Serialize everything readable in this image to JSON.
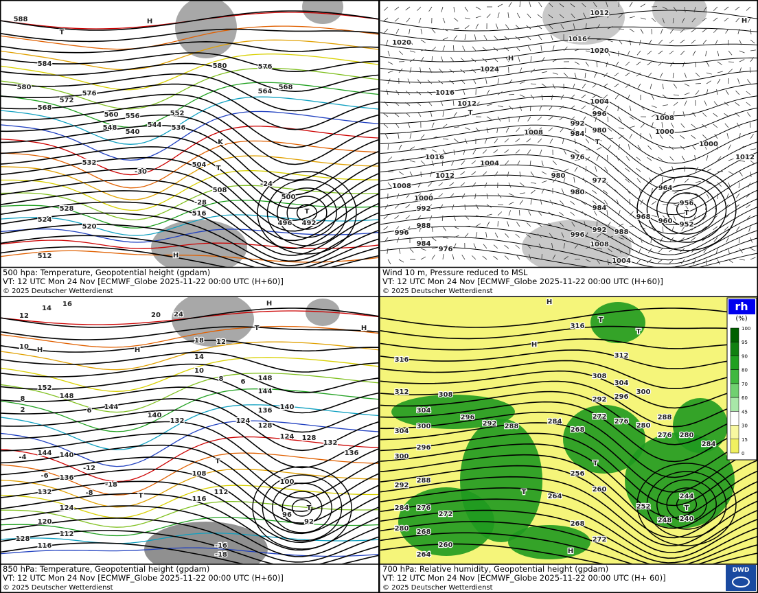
{
  "panels": [
    {
      "caption": [
        "500 hpa: Temperature, Geopotential height (gpdam)",
        "VT: 12 UTC Mon  24 Nov [ECMWF_Globe 2025-11-22 00:00 UTC (H+60)]",
        "© 2025 Deutscher Wetterdienst"
      ],
      "labels": [
        "588",
        "584",
        "580",
        "576",
        "572",
        "568",
        "560",
        "556",
        "552",
        "548",
        "544",
        "540",
        "536",
        "532",
        "528",
        "524",
        "520",
        "516",
        "512",
        "508",
        "504",
        "500",
        "496",
        "492",
        "-30",
        "-24",
        "-28",
        "T",
        "H",
        "T",
        "T",
        "H",
        "K",
        "576",
        "580",
        "564",
        "568"
      ]
    },
    {
      "caption": [
        "Wind 10 m, Pressure reduced to MSL",
        "VT: 12 UTC Mon  24 Nov [ECMWF_Globe 2025-11-22 00:00 UTC (H+60)]",
        "© 2025 Deutscher Wetterdienst"
      ],
      "labels": [
        "1020",
        "1024",
        "1016",
        "1012",
        "1008",
        "1004",
        "1016",
        "1012",
        "1008",
        "1000",
        "992",
        "988",
        "984",
        "976",
        "996",
        "1012",
        "1016",
        "1020",
        "1004",
        "996",
        "992",
        "980",
        "984",
        "976",
        "972",
        "980",
        "980",
        "984",
        "964",
        "956",
        "960",
        "952",
        "968",
        "1008",
        "1000",
        "1000",
        "1012",
        "992",
        "988",
        "996",
        "1008",
        "1004",
        "H",
        "T",
        "T",
        "T",
        "H"
      ]
    },
    {
      "caption": [
        "850 hPa:  Temperature, Geopotential height (gpdam)",
        "VT: 12 UTC Mon  24 Nov [ECMWF_Globe 2025-11-22 00:00 UTC (H+60)]",
        "© 2025 Deutscher Wetterdienst"
      ],
      "labels": [
        "16",
        "14",
        "12",
        "10",
        "20",
        "24",
        "18",
        "12",
        "14",
        "10",
        "8",
        "6",
        "148",
        "144",
        "152",
        "148",
        "144",
        "140",
        "132",
        "136",
        "140",
        "128",
        "124",
        "124",
        "128",
        "132",
        "136",
        "144",
        "140",
        "136",
        "132",
        "124",
        "120",
        "112",
        "116",
        "128",
        "116",
        "112",
        "108",
        "100",
        "96",
        "92",
        "8",
        "2",
        "6",
        "-4",
        "-6",
        "-8",
        "-12",
        "-18",
        "-16",
        "-18",
        "H",
        "H",
        "T",
        "H",
        "T",
        "T",
        "T",
        "H"
      ]
    },
    {
      "caption": [
        "700 hPa:  Relative humidity, Geopotential height (gpdam)",
        "VT: 12 UTC Mon  24 Nov [ECMWF_Globe  2025-11-22 00:00 UTC (H+ 60)]",
        "© 2025 Deutscher Wetterdienst"
      ],
      "labels": [
        "316",
        "312",
        "308",
        "304",
        "300",
        "296",
        "292",
        "288",
        "284",
        "312",
        "308",
        "304",
        "300",
        "296",
        "292",
        "288",
        "280",
        "276",
        "280",
        "284",
        "272",
        "276",
        "268",
        "256",
        "260",
        "264",
        "268",
        "272",
        "252",
        "248",
        "244",
        "240",
        "304",
        "300",
        "296",
        "292",
        "288",
        "284",
        "276",
        "272",
        "280",
        "268",
        "264",
        "260",
        "316",
        "H",
        "T",
        "T",
        "H",
        "T",
        "T",
        "T",
        "H"
      ]
    }
  ],
  "legend": {
    "title": "rh",
    "unit": "(%)",
    "ticks": [
      "100",
      "95",
      "90",
      "80",
      "70",
      "60",
      "45",
      "30",
      "15",
      "0"
    ]
  },
  "logo": "DWD"
}
